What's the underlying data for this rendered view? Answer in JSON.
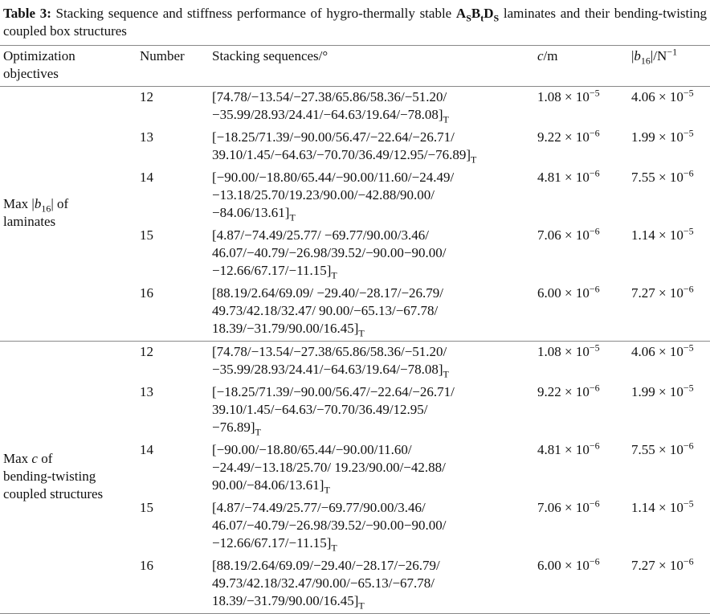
{
  "title": {
    "label": "Table 3:",
    "text": "Stacking sequence and stiffness performance of hygro-thermally stable ",
    "formula": [
      {
        "base": "A",
        "sub": "S"
      },
      {
        "base": "B",
        "sub": "t"
      },
      {
        "base": "D",
        "sub": "S"
      }
    ],
    "text_end": " laminates and their bending-twisting coupled box structures"
  },
  "header": {
    "objective": [
      "Optimization",
      "objectives"
    ],
    "number": "Number",
    "sequence": "Stacking sequences/°",
    "c": [
      {
        "t": "c",
        "s": "i"
      },
      {
        "t": "/m"
      }
    ],
    "b": [
      {
        "t": "|"
      },
      {
        "t": "b",
        "s": "i"
      },
      {
        "t": "16",
        "s": "sub"
      },
      {
        "t": "|/N"
      },
      {
        "t": "−1",
        "s": "sup"
      }
    ]
  },
  "groups": [
    {
      "objective": [
        [
          {
            "t": "Max |"
          },
          {
            "t": "b",
            "s": "i"
          },
          {
            "t": "16",
            "s": "sub"
          },
          {
            "t": "| of"
          }
        ],
        [
          {
            "t": "laminates"
          }
        ]
      ],
      "rows": [
        {
          "number": 12,
          "sequence": {
            "lines": [
              "[74.78/−13.54/−27.38/65.86/58.36/−51.20/",
              "−35.99/28.93/24.41/−64.63/19.64/−78.08]"
            ],
            "sub": "T"
          },
          "c": {
            "base": "1.08 × 10",
            "exp": "−5"
          },
          "b": {
            "base": "4.06 × 10",
            "exp": "−5"
          }
        },
        {
          "number": 13,
          "sequence": {
            "lines": [
              "[−18.25/71.39/−90.00/56.47/−22.64/−26.71/",
              "39.10/1.45/−64.63/−70.70/36.49/12.95/−76.89]"
            ],
            "sub": "T"
          },
          "c": {
            "base": "9.22 × 10",
            "exp": "−6"
          },
          "b": {
            "base": "1.99 × 10",
            "exp": "−5"
          }
        },
        {
          "number": 14,
          "sequence": {
            "lines": [
              "[−90.00/−18.80/65.44/−90.00/11.60/−24.49/",
              "−13.18/25.70/19.23/90.00/−42.88/90.00/",
              "−84.06/13.61]"
            ],
            "sub": "T"
          },
          "c": {
            "base": "4.81 × 10",
            "exp": "−6"
          },
          "b": {
            "base": "7.55 × 10",
            "exp": "−6"
          }
        },
        {
          "number": 15,
          "sequence": {
            "lines": [
              "[4.87/−74.49/25.77/ −69.77/90.00/3.46/",
              "46.07/−40.79/−26.98/39.52/−90.00−90.00/",
              "−12.66/67.17/−11.15]"
            ],
            "sub": "T"
          },
          "c": {
            "base": "7.06 × 10",
            "exp": "−6"
          },
          "b": {
            "base": "1.14 × 10",
            "exp": "−5"
          }
        },
        {
          "number": 16,
          "sequence": {
            "lines": [
              "[88.19/2.64/69.09/ −29.40/−28.17/−26.79/",
              "49.73/42.18/32.47/ 90.00/−65.13/−67.78/",
              "18.39/−31.79/90.00/16.45]"
            ],
            "sub": "T"
          },
          "c": {
            "base": "6.00 × 10",
            "exp": "−6"
          },
          "b": {
            "base": "7.27 × 10",
            "exp": "−6"
          }
        }
      ]
    },
    {
      "objective": [
        [
          {
            "t": "Max "
          },
          {
            "t": "c",
            "s": "i"
          },
          {
            "t": " of"
          }
        ],
        [
          {
            "t": "bending-twisting"
          }
        ],
        [
          {
            "t": "coupled structures"
          }
        ]
      ],
      "rows": [
        {
          "number": 12,
          "sequence": {
            "lines": [
              "[74.78/−13.54/−27.38/65.86/58.36/−51.20/",
              "−35.99/28.93/24.41/−64.63/19.64/−78.08]"
            ],
            "sub": "T"
          },
          "c": {
            "base": "1.08 × 10",
            "exp": "−5"
          },
          "b": {
            "base": "4.06 × 10",
            "exp": "−5"
          }
        },
        {
          "number": 13,
          "sequence": {
            "lines": [
              "[−18.25/71.39/−90.00/56.47/−22.64/−26.71/",
              "39.10/1.45/−64.63/−70.70/36.49/12.95/",
              "−76.89]"
            ],
            "sub": "T"
          },
          "c": {
            "base": "9.22 × 10",
            "exp": "−6"
          },
          "b": {
            "base": "1.99 × 10",
            "exp": "−5"
          }
        },
        {
          "number": 14,
          "sequence": {
            "lines": [
              "[−90.00/−18.80/65.44/−90.00/11.60/",
              "−24.49/−13.18/25.70/ 19.23/90.00/−42.88/",
              "90.00/−84.06/13.61]"
            ],
            "sub": "T"
          },
          "c": {
            "base": "4.81 × 10",
            "exp": "−6"
          },
          "b": {
            "base": "7.55 × 10",
            "exp": "−6"
          }
        },
        {
          "number": 15,
          "sequence": {
            "lines": [
              "[4.87/−74.49/25.77/−69.77/90.00/3.46/",
              "46.07/−40.79/−26.98/39.52/−90.00−90.00/",
              "−12.66/67.17/−11.15]"
            ],
            "sub": "T"
          },
          "c": {
            "base": "7.06 × 10",
            "exp": "−6"
          },
          "b": {
            "base": "1.14 × 10",
            "exp": "−5"
          }
        },
        {
          "number": 16,
          "sequence": {
            "lines": [
              "[88.19/2.64/69.09/−29.40/−28.17/−26.79/",
              "49.73/42.18/32.47/90.00/−65.13/−67.78/",
              "18.39/−31.79/90.00/16.45]"
            ],
            "sub": "T"
          },
          "c": {
            "base": "6.00 × 10",
            "exp": "−6"
          },
          "b": {
            "base": "7.27 × 10",
            "exp": "−6"
          }
        }
      ]
    }
  ]
}
